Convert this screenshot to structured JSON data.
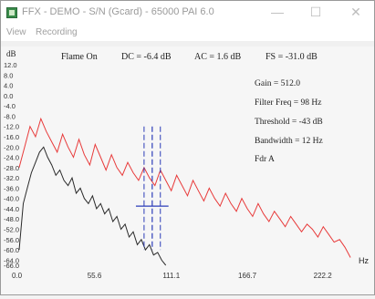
{
  "window": {
    "title": "FFX - DEMO - S/N (Gcard) - 65000 PAI 6.0",
    "min_icon": "minimize-icon",
    "max_icon": "maximize-icon",
    "close_icon": "close-icon"
  },
  "menu": {
    "view": "View",
    "recording": "Recording"
  },
  "header": {
    "db_unit": "dB",
    "status": "Flame On",
    "dc": "DC =   -6.4 dB",
    "ac": "AC =   1.6 dB",
    "fs": "FS = -31.0 dB"
  },
  "info": {
    "gain": "Gain = 512.0",
    "filter_freq": "Filter Freq = 98 Hz",
    "threshold": "Threshold = -43 dB",
    "bandwidth": "Bandwidth = 12 Hz",
    "fdr": "Fdr A"
  },
  "chart_data": {
    "type": "line",
    "xlabel": "Hz",
    "ylabel": "dB",
    "xlim": [
      0,
      250
    ],
    "ylim": [
      -66,
      12
    ],
    "x_ticks": [
      "0.0",
      "55.6",
      "111.1",
      "166.7",
      "222.2"
    ],
    "x_tick_values": [
      0,
      55.6,
      111.1,
      166.7,
      222.2
    ],
    "y_ticks": [
      "12.0",
      "8.0",
      "4.0",
      "0.0",
      "-4.0",
      "-8.0",
      "-12.0",
      "-16.0",
      "-20.0",
      "-24.0",
      "-28.0",
      "-32.0",
      "-36.0",
      "-40.0",
      "-44.0",
      "-48.0",
      "-52.0",
      "-56.0",
      "-60.0",
      "-64.0",
      "-66.0"
    ],
    "colors": {
      "red": "#e83a3a",
      "black": "#2a2a2a",
      "blue": "#2b3cb8",
      "grid": "#e8e8e8"
    },
    "series": [
      {
        "color": "red",
        "x": [
          0,
          4,
          8,
          12,
          16,
          20,
          24,
          28,
          32,
          36,
          40,
          44,
          48,
          52,
          56,
          60,
          64,
          68,
          72,
          76,
          80,
          84,
          88,
          92,
          96,
          100,
          104,
          108,
          112,
          116,
          120,
          124,
          128,
          132,
          136,
          140,
          144,
          148,
          152,
          156,
          160,
          164,
          168,
          172,
          176,
          180,
          184,
          188,
          192,
          196,
          200,
          204,
          208,
          212,
          216,
          220,
          224,
          228,
          232,
          236,
          240,
          244
        ],
        "y": [
          -28,
          -20,
          -12,
          -16,
          -9,
          -14,
          -18,
          -22,
          -15,
          -20,
          -24,
          -17,
          -23,
          -27,
          -19,
          -24,
          -29,
          -23,
          -28,
          -31,
          -26,
          -30,
          -33,
          -28,
          -32,
          -35,
          -29,
          -33,
          -37,
          -31,
          -35,
          -39,
          -33,
          -37,
          -41,
          -36,
          -40,
          -43,
          -38,
          -42,
          -45,
          -40,
          -44,
          -47,
          -42,
          -46,
          -49,
          -45,
          -48,
          -51,
          -47,
          -50,
          -53,
          -50,
          -52,
          -55,
          -51,
          -54,
          -57,
          -56,
          -59,
          -63
        ]
      },
      {
        "color": "black",
        "x": [
          0,
          3,
          6,
          9,
          12,
          15,
          18,
          21,
          24,
          27,
          30,
          33,
          36,
          39,
          42,
          45,
          48,
          51,
          54,
          57,
          60,
          63,
          66,
          69,
          72,
          75,
          78,
          81,
          84,
          87,
          90,
          93,
          96,
          99,
          102,
          105,
          108
        ],
        "y": [
          -60,
          -42,
          -36,
          -30,
          -26,
          -22,
          -20,
          -24,
          -27,
          -31,
          -29,
          -33,
          -35,
          -32,
          -38,
          -36,
          -40,
          -42,
          -39,
          -44,
          -42,
          -46,
          -44,
          -49,
          -47,
          -52,
          -50,
          -55,
          -53,
          -58,
          -56,
          -60,
          -58,
          -62,
          -61,
          -64,
          -66
        ]
      }
    ],
    "cursor": {
      "x_freq": 98,
      "band_lo": 92,
      "band_hi": 104,
      "threshold_db": -43
    }
  }
}
